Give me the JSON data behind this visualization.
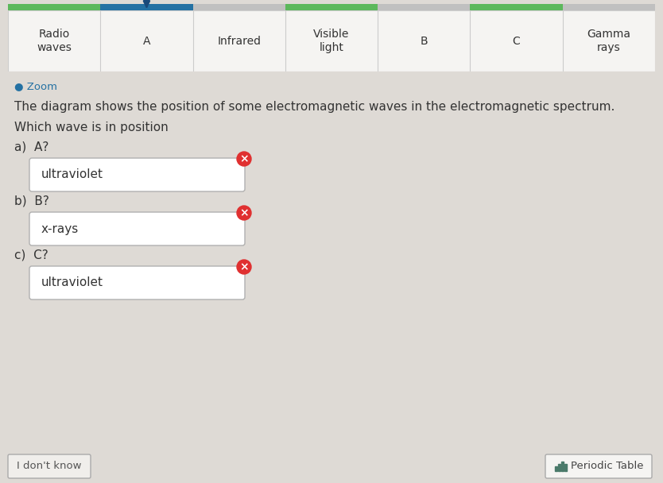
{
  "background_color": "#dedad5",
  "cell_bg_white": "#f5f4f2",
  "cell_bg_green": "#5cb85c",
  "cell_border": "#cccccc",
  "stripe_colors": [
    "#5cb85c",
    "#2471a3",
    "#c0c0c0",
    "#5cb85c",
    "#c0c0c0",
    "#5cb85c",
    "#c0c0c0"
  ],
  "spectrum_cells": [
    {
      "label": "Radio\nwaves",
      "bg": "white"
    },
    {
      "label": "A",
      "bg": "white"
    },
    {
      "label": "Infrared",
      "bg": "white"
    },
    {
      "label": "Visible\nlight",
      "bg": "white"
    },
    {
      "label": "B",
      "bg": "white"
    },
    {
      "label": "C",
      "bg": "white"
    },
    {
      "label": "Gamma\nrays",
      "bg": "white"
    }
  ],
  "arrow_cell_idx": 1,
  "arrow_color": "#1a4a7a",
  "zoom_label": "Zoom",
  "zoom_color": "#2471a3",
  "description": "The diagram shows the position of some electromagnetic waves in the electromagnetic spectrum.",
  "question": "Which wave is in position",
  "qa_items": [
    {
      "part": "a)",
      "q": "A?",
      "answer": "ultraviolet"
    },
    {
      "part": "b)",
      "q": "B?",
      "answer": "x-rays"
    },
    {
      "part": "c)",
      "q": "C?",
      "answer": "ultraviolet"
    }
  ],
  "wrong_color": "#e03030",
  "answer_box_bg": "#ffffff",
  "answer_box_border": "#b0b0b0",
  "bottom_left_text": "I don't know",
  "bottom_right_text": "Periodic Table",
  "periodic_icon_color": "#4a7a6a"
}
